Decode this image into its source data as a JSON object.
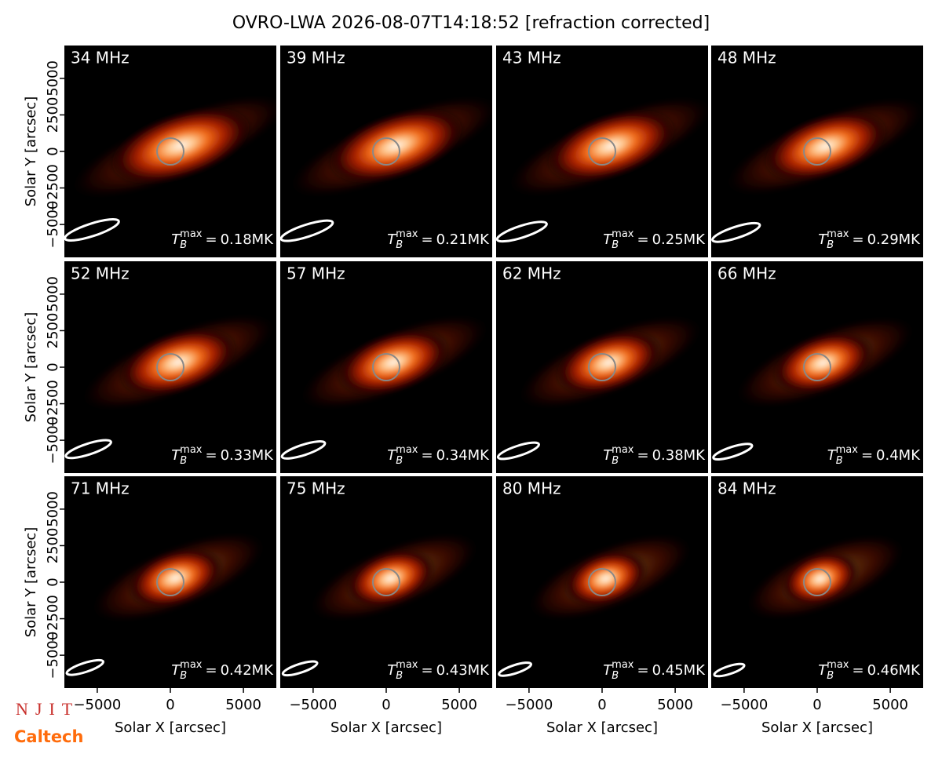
{
  "chart_data": {
    "type": "image-grid",
    "title": "OVRO-LWA 2026-08-07T14:18:52 [refraction corrected]",
    "x_label": "Solar X [arcsec]",
    "y_label": "Solar Y [arcsec]",
    "xlim": [
      -7250,
      7250
    ],
    "ylim": [
      -7250,
      7250
    ],
    "xticks": [
      {
        "value": -5000,
        "label": "−5000"
      },
      0,
      5000
    ],
    "yticks": [
      {
        "value": -5000,
        "label": "−5000"
      },
      {
        "value": -2500,
        "label": "−2500"
      },
      0,
      2500,
      5000
    ],
    "tb_symbol": "T",
    "tb_sub": "B",
    "tb_sup": "max",
    "tb_equals": "=",
    "panels": [
      {
        "label": "34 MHz",
        "tb_max": "0.18MK"
      },
      {
        "label": "39 MHz",
        "tb_max": "0.21MK"
      },
      {
        "label": "43 MHz",
        "tb_max": "0.25MK"
      },
      {
        "label": "48 MHz",
        "tb_max": "0.29MK"
      },
      {
        "label": "52 MHz",
        "tb_max": "0.33MK"
      },
      {
        "label": "57 MHz",
        "tb_max": "0.34MK"
      },
      {
        "label": "62 MHz",
        "tb_max": "0.38MK"
      },
      {
        "label": "66 MHz",
        "tb_max": "0.4MK"
      },
      {
        "label": "71 MHz",
        "tb_max": "0.42MK"
      },
      {
        "label": "75 MHz",
        "tb_max": "0.43MK"
      },
      {
        "label": "80 MHz",
        "tb_max": "0.45MK"
      },
      {
        "label": "84 MHz",
        "tb_max": "0.46MK"
      }
    ]
  },
  "logos": [
    "NJIT",
    "Caltech"
  ]
}
